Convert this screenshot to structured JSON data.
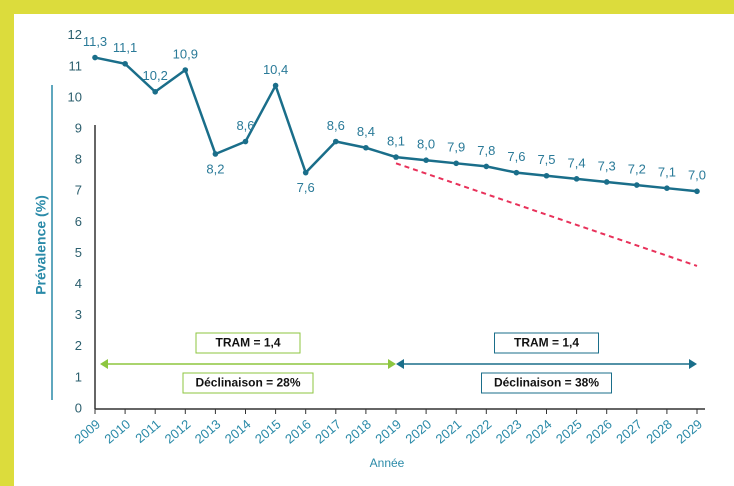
{
  "chart_data": {
    "type": "line",
    "x": [
      2009,
      2010,
      2011,
      2012,
      2013,
      2014,
      2015,
      2016,
      2017,
      2018,
      2019,
      2020,
      2021,
      2022,
      2023,
      2024,
      2025,
      2026,
      2027,
      2028,
      2029
    ],
    "xlim": [
      2009,
      2029
    ],
    "xticks": [
      2009,
      2010,
      2011,
      2012,
      2013,
      2014,
      2015,
      2016,
      2017,
      2018,
      2019,
      2020,
      2021,
      2022,
      2023,
      2024,
      2025,
      2026,
      2027,
      2028,
      2029
    ],
    "ylim": [
      0,
      12
    ],
    "yticks": [
      0,
      1,
      2,
      3,
      4,
      5,
      6,
      7,
      8,
      9,
      10,
      11,
      12
    ],
    "xlabel": "Année",
    "ylabel": "Prévalence (%)",
    "series": [
      {
        "color": "#1a6e8a",
        "values": [
          11.3,
          11.1,
          10.2,
          10.9,
          8.2,
          8.6,
          10.4,
          7.6,
          8.6,
          8.4,
          8.1,
          8.0,
          7.9,
          7.8,
          7.6,
          7.5,
          7.4,
          7.3,
          7.2,
          7.1,
          7.0
        ],
        "value_labels": [
          "11,3",
          "11,1",
          "10,2",
          "10,9",
          "8,2",
          "8,6",
          "10,4",
          "7,6",
          "8,6",
          "8,4",
          "8,1",
          "8,0",
          "7,9",
          "7,8",
          "7,6",
          "7,5",
          "7,4",
          "7,3",
          "7,2",
          "7,1",
          "7,0"
        ]
      },
      {
        "color": "#e8315a",
        "dashed": true,
        "values": [
          null,
          null,
          null,
          null,
          null,
          null,
          null,
          null,
          null,
          null,
          7.9,
          7.57,
          7.24,
          6.91,
          6.58,
          6.25,
          5.92,
          5.59,
          5.26,
          4.93,
          4.6
        ]
      }
    ],
    "annotations": [
      {
        "tram": "TRAM = 1,4",
        "decline": "Déclinaison = 28%",
        "color": "#8dc63f"
      },
      {
        "tram": "TRAM = 1,4",
        "decline": "Déclinaison = 38%",
        "color": "#1a6e8a"
      }
    ]
  }
}
